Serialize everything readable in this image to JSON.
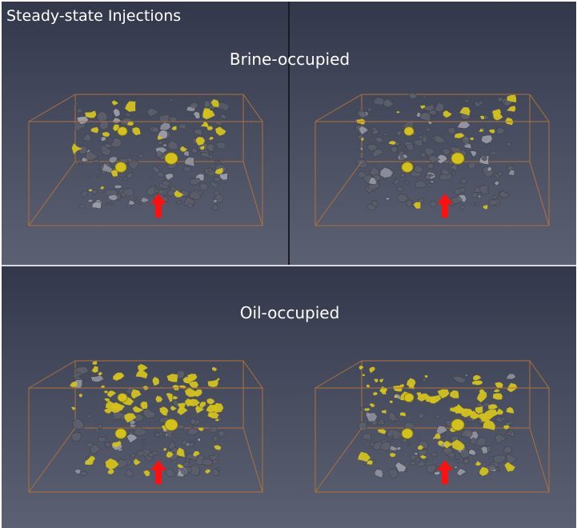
{
  "title": "Steady-state Injections",
  "groups": {
    "brine": "Brine-occupied",
    "oil": "Oil-occupied"
  },
  "colors": {
    "rock": "#5c5f6b",
    "rock_highlight": "#9a9ca6",
    "fluid": "#d4c21a",
    "box_edge": "#b0703a",
    "arrow": "#ff1010"
  },
  "icons": [
    "up-arrow-icon"
  ]
}
